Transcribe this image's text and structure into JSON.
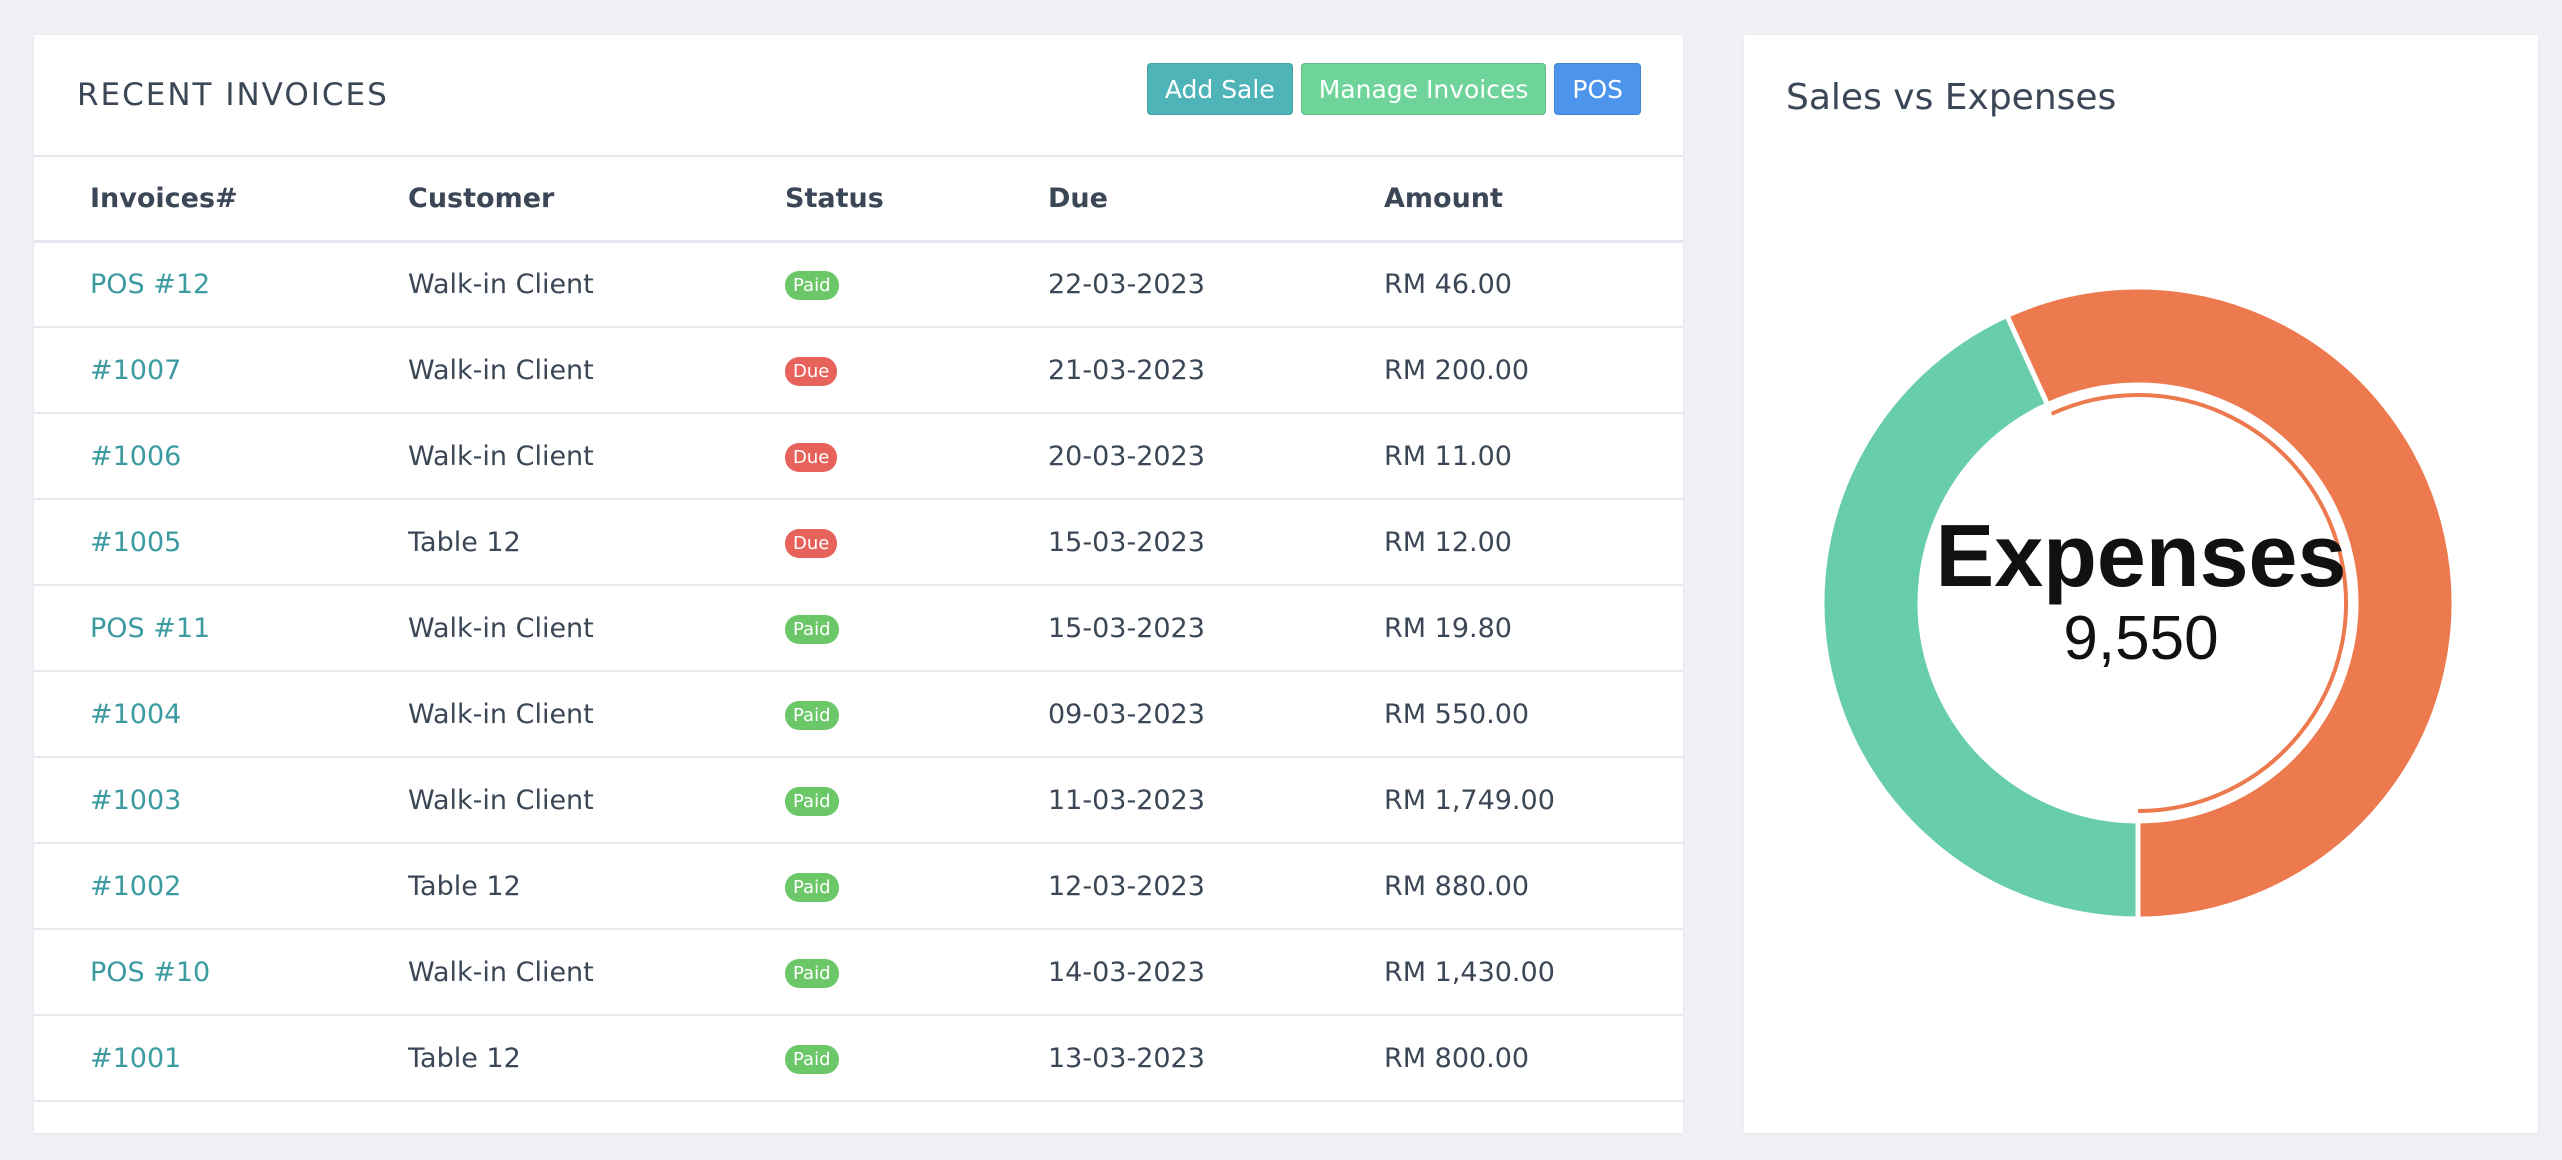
{
  "invoices": {
    "title": "RECENT INVOICES",
    "buttons": {
      "add_sale": "Add Sale",
      "manage_invoices": "Manage Invoices",
      "pos": "POS"
    },
    "columns": [
      "Invoices#",
      "Customer",
      "Status",
      "Due",
      "Amount"
    ],
    "rows": [
      {
        "invoice": "POS #12",
        "customer": "Walk-in Client",
        "status": "Paid",
        "due": "22-03-2023",
        "amount": "RM 46.00"
      },
      {
        "invoice": "#1007",
        "customer": "Walk-in Client",
        "status": "Due",
        "due": "21-03-2023",
        "amount": "RM 200.00"
      },
      {
        "invoice": "#1006",
        "customer": "Walk-in Client",
        "status": "Due",
        "due": "20-03-2023",
        "amount": "RM 11.00"
      },
      {
        "invoice": "#1005",
        "customer": "Table 12",
        "status": "Due",
        "due": "15-03-2023",
        "amount": "RM 12.00"
      },
      {
        "invoice": "POS #11",
        "customer": "Walk-in Client",
        "status": "Paid",
        "due": "15-03-2023",
        "amount": "RM 19.80"
      },
      {
        "invoice": "#1004",
        "customer": "Walk-in Client",
        "status": "Paid",
        "due": "09-03-2023",
        "amount": "RM 550.00"
      },
      {
        "invoice": "#1003",
        "customer": "Walk-in Client",
        "status": "Paid",
        "due": "11-03-2023",
        "amount": "RM 1,749.00"
      },
      {
        "invoice": "#1002",
        "customer": "Table 12",
        "status": "Paid",
        "due": "12-03-2023",
        "amount": "RM 880.00"
      },
      {
        "invoice": "POS #10",
        "customer": "Walk-in Client",
        "status": "Paid",
        "due": "14-03-2023",
        "amount": "RM 1,430.00"
      },
      {
        "invoice": "#1001",
        "customer": "Table 12",
        "status": "Paid",
        "due": "13-03-2023",
        "amount": "RM 800.00"
      }
    ]
  },
  "colors": {
    "accent_link": "#3c9ba1",
    "paid": "#6cc769",
    "due": "#e8625c",
    "btn_teal": "#4eb4b8",
    "btn_green": "#6ed49a",
    "btn_blue": "#4d94ec",
    "expenses": "#ed794e",
    "sales": "#67cdaa"
  },
  "chart": {
    "title": "Sales vs Expenses",
    "center_label": "Expenses",
    "center_value": "9,550"
  },
  "chart_data": {
    "type": "pie",
    "title": "Sales vs Expenses",
    "legend": "none",
    "categories": [
      "Expenses",
      "Sales"
    ],
    "values": [
      9550,
      7260
    ],
    "highlighted": "Expenses"
  }
}
